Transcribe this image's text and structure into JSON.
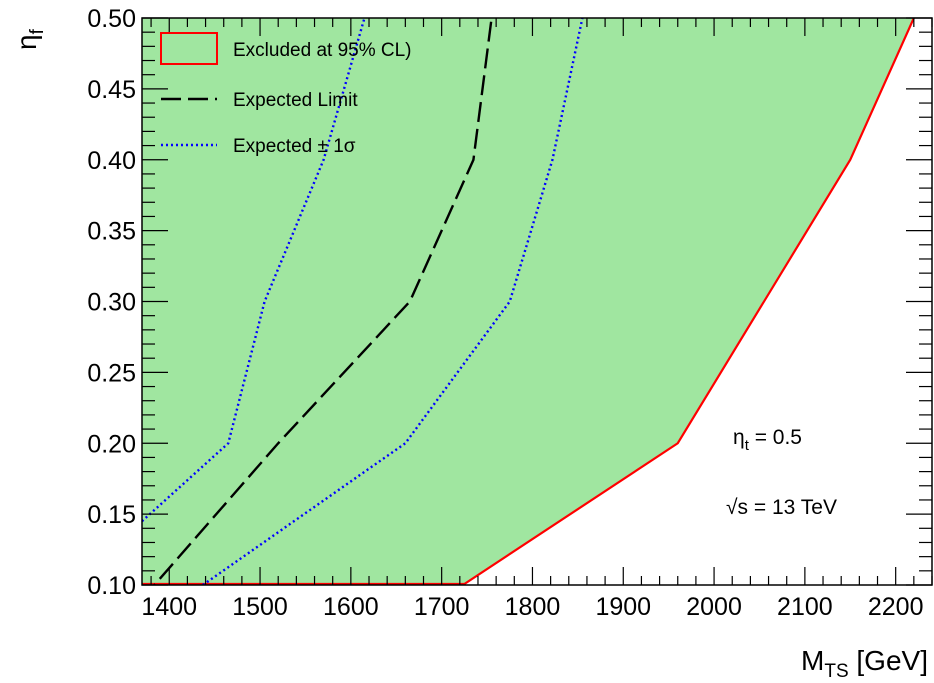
{
  "chart_data": {
    "type": "area",
    "xlabel": {
      "main": "M",
      "sub": "TS",
      "unit": " [GeV]"
    },
    "ylabel": {
      "main": "η",
      "sub": "f"
    },
    "xlim": [
      1370,
      2240
    ],
    "ylim": [
      0.1,
      0.5
    ],
    "x_ticks": [
      1400,
      1500,
      1600,
      1700,
      1800,
      1900,
      2000,
      2100,
      2200
    ],
    "x_tick_labels": [
      "1400",
      "1500",
      "1600",
      "1700",
      "1800",
      "1900",
      "2000",
      "2100",
      "2200"
    ],
    "y_ticks": [
      0.1,
      0.15,
      0.2,
      0.25,
      0.3,
      0.35,
      0.4,
      0.45,
      0.5
    ],
    "y_tick_labels": [
      "0.10",
      "0.15",
      "0.20",
      "0.25",
      "0.30",
      "0.35",
      "0.40",
      "0.45",
      "0.50"
    ],
    "grid": false,
    "legend_position": "top-left",
    "series": [
      {
        "name": "Excluded at 95% CL)",
        "style": "filled-area",
        "fill_color": "#a0e6a0",
        "line_color": "#ff0000",
        "x": [
          1725,
          1960,
          2150,
          2220
        ],
        "y": [
          0.1,
          0.2,
          0.4,
          0.5
        ]
      },
      {
        "name": "Expected Limit",
        "style": "dashed",
        "line_color": "#000000",
        "x": [
          1370,
          1520,
          1665,
          1735,
          1755
        ],
        "y": [
          0.09,
          0.2,
          0.3,
          0.4,
          0.5
        ]
      },
      {
        "name": "Expected ± 1σ",
        "style": "dotted",
        "line_color": "#0000ff",
        "x": [
          1370,
          1465,
          1505,
          1570,
          1615
        ],
        "y": [
          0.145,
          0.2,
          0.3,
          0.4,
          0.5
        ]
      },
      {
        "name": "",
        "style": "dotted",
        "line_color": "#0000ff",
        "x": [
          1437,
          1660,
          1775,
          1822,
          1855
        ],
        "y": [
          0.1,
          0.2,
          0.3,
          0.4,
          0.5
        ]
      }
    ],
    "annotations": [
      {
        "main": "η",
        "sub": "t",
        "rest": " = 0.5"
      },
      {
        "main": "√s",
        "rest": " = 13 TeV"
      }
    ]
  }
}
